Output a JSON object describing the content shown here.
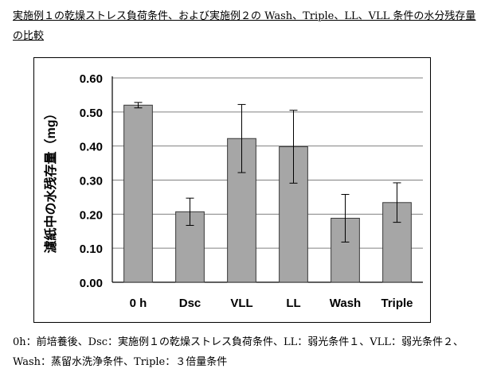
{
  "title": "実施例１の乾燥ストレス負荷条件、および実施例２の Wash、Triple、LL、VLL 条件の水分残存量の比較",
  "caption": "0h：前培養後、Dsc：実施例１の乾燥ストレス負荷条件、LL：弱光条件１、VLL：弱光条件２、 Wash：蒸留水洗浄条件、Triple：３倍量条件",
  "colors": {
    "bar": "#a6a6a6",
    "bar_stroke": "#3a3a3a",
    "grid": "#808080",
    "axis": "#000000"
  },
  "chart_data": {
    "type": "bar",
    "categories": [
      "0 h",
      "Dsc",
      "VLL",
      "LL",
      "Wash",
      "Triple"
    ],
    "values": [
      0.52,
      0.207,
      0.422,
      0.398,
      0.188,
      0.234
    ],
    "error": [
      0.008,
      0.04,
      0.1,
      0.107,
      0.07,
      0.058
    ],
    "ylabel": "濾紙中の水残存量（mg）",
    "ylim": [
      0,
      0.6
    ],
    "yticks": [
      "0.00",
      "0.10",
      "0.20",
      "0.30",
      "0.40",
      "0.50",
      "0.60"
    ],
    "grid": true
  }
}
